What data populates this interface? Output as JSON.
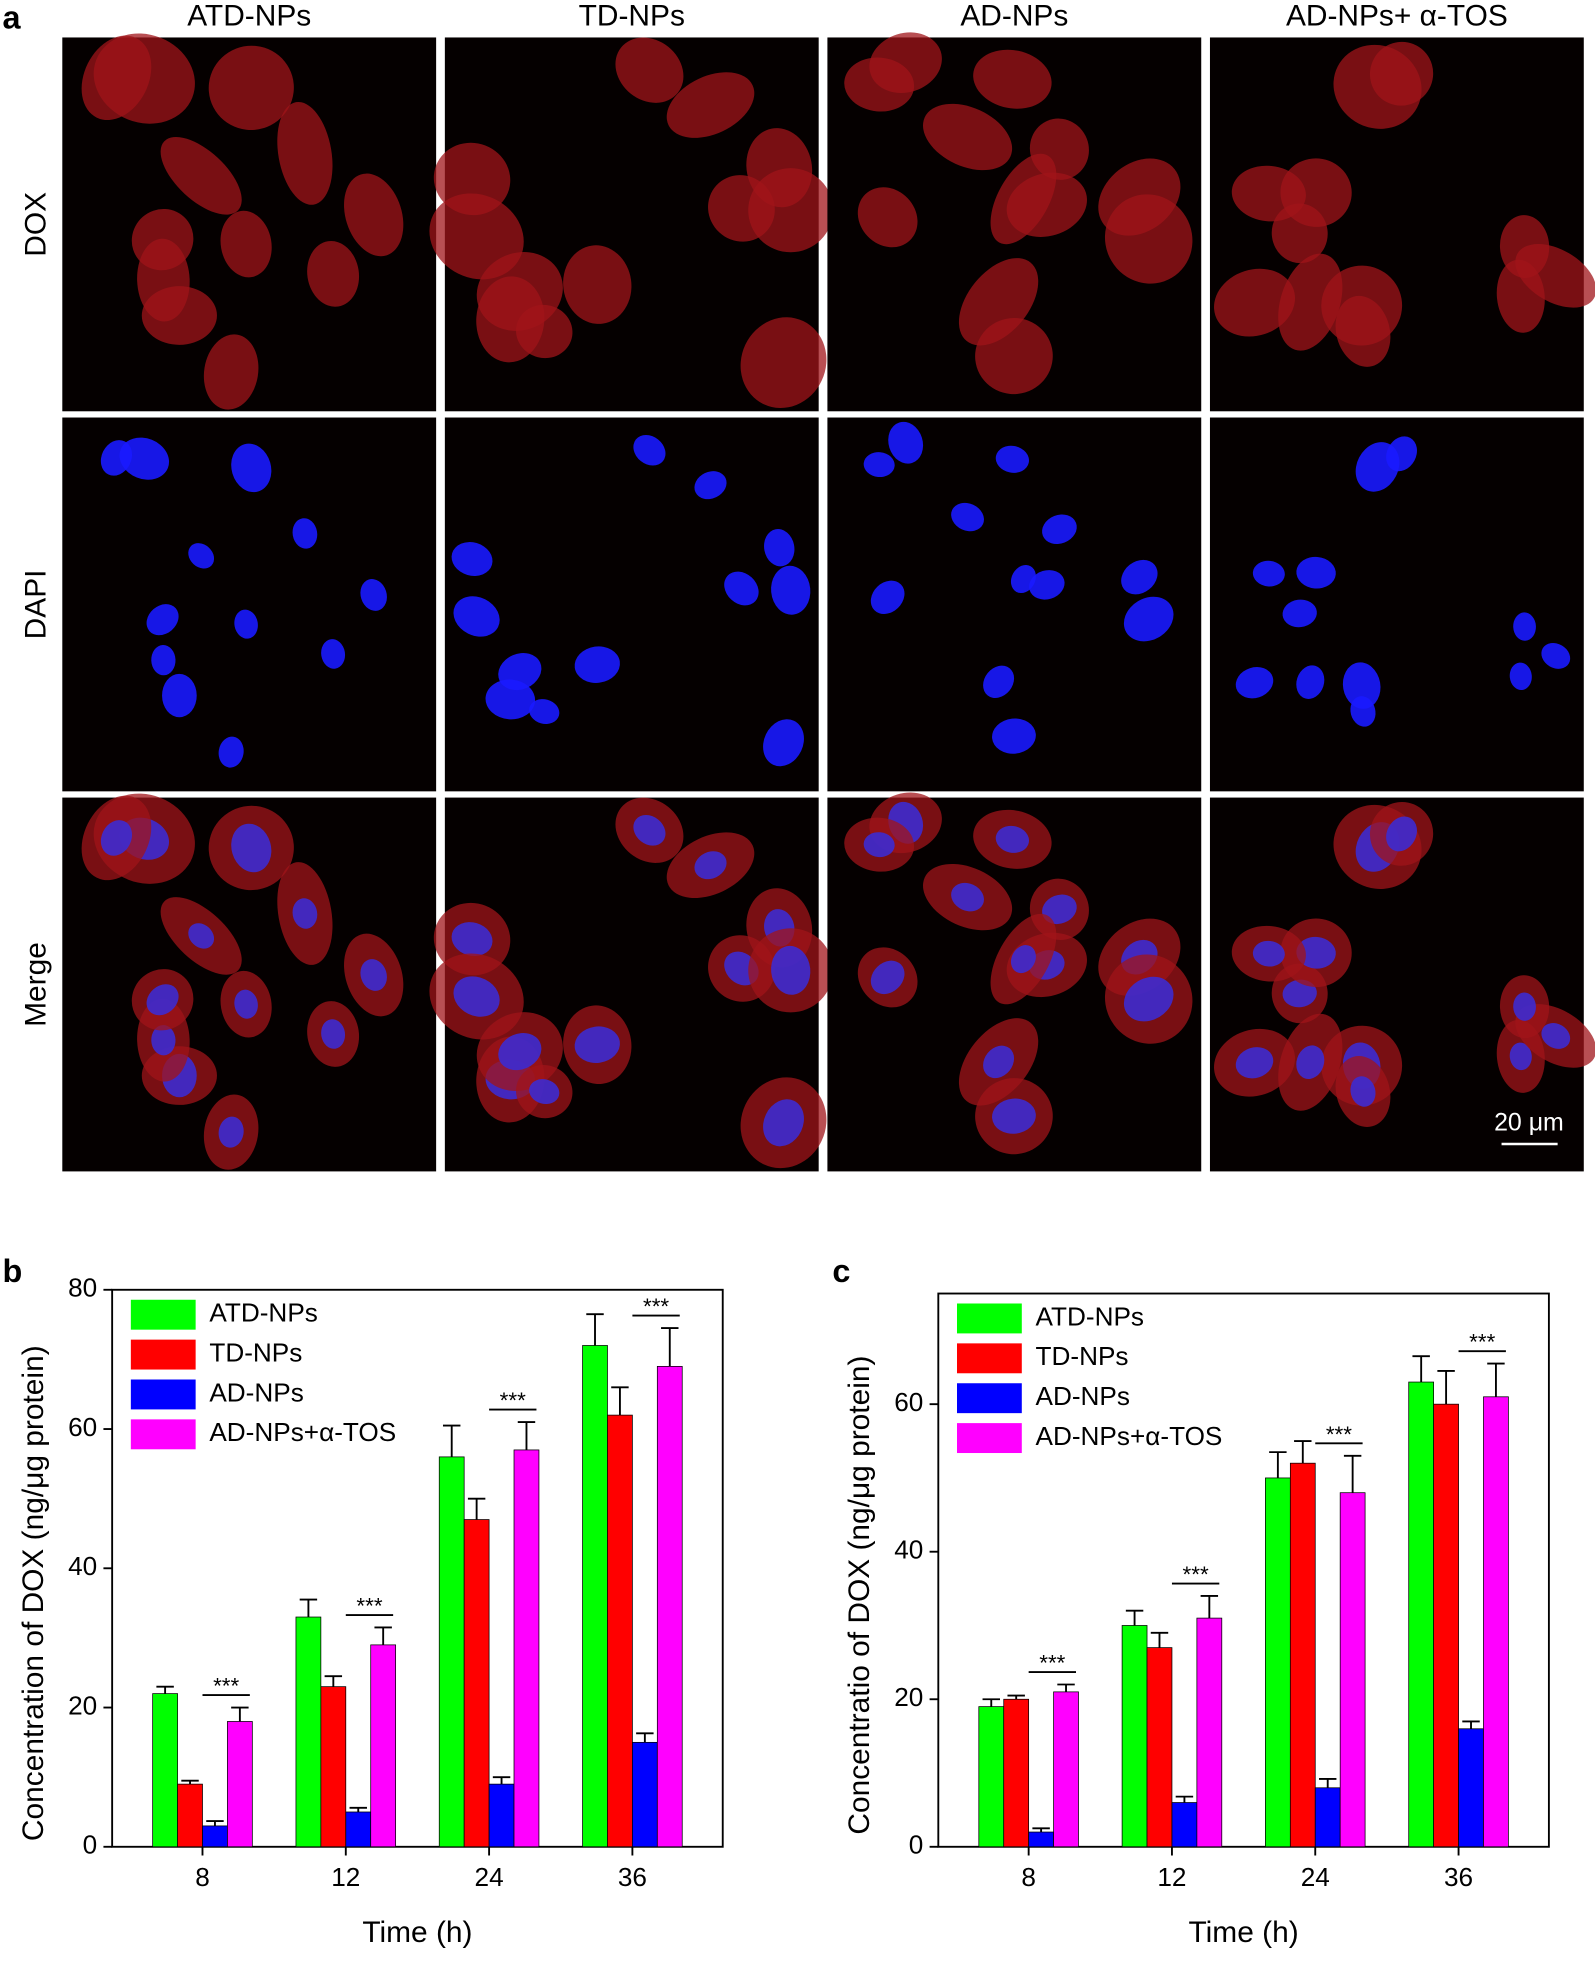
{
  "figure_a": {
    "panel_label": "a",
    "columns": [
      "ATD-NPs",
      "TD-NPs",
      "AD-NPs",
      "AD-NPs+ α-TOS"
    ],
    "rows": [
      "DOX",
      "DAPI",
      "Merge"
    ],
    "scale_bar": "20 μm"
  },
  "chart_data": [
    {
      "type": "bar",
      "panel_label": "b",
      "y_label": "Concentration of DOX (ng/μg protein)",
      "x_label": "Time (h)",
      "categories": [
        "8",
        "12",
        "24",
        "36"
      ],
      "ylim": [
        0,
        80
      ],
      "yticks": [
        0,
        20,
        40,
        60,
        80
      ],
      "legend": "top-left",
      "series": [
        {
          "name": "ATD-NPs",
          "color": "#00ff00",
          "values": [
            22,
            33,
            56,
            72
          ],
          "errors": [
            1,
            2.5,
            4.5,
            4.5
          ]
        },
        {
          "name": "TD-NPs",
          "color": "#ff0000",
          "values": [
            9,
            23,
            47,
            62
          ],
          "errors": [
            0.5,
            1.5,
            3,
            4
          ]
        },
        {
          "name": "AD-NPs",
          "color": "#0000ff",
          "values": [
            3,
            5,
            9,
            15
          ],
          "errors": [
            0.7,
            0.6,
            1,
            1.3
          ]
        },
        {
          "name": "AD-NPs+α-TOS",
          "color": "#ff00ff",
          "values": [
            18,
            29,
            57,
            69
          ],
          "errors": [
            2,
            2.5,
            4,
            5.5
          ]
        }
      ],
      "annotations": [
        "***",
        "***",
        "***",
        "***"
      ]
    },
    {
      "type": "bar",
      "panel_label": "c",
      "y_label": "Concentratio of DOX (ng/μg protein)",
      "x_label": "Time (h)",
      "categories": [
        "8",
        "12",
        "24",
        "36"
      ],
      "ylim": [
        0,
        75
      ],
      "yticks": [
        0,
        20,
        40,
        60
      ],
      "legend": "top-left",
      "series": [
        {
          "name": "ATD-NPs",
          "color": "#00ff00",
          "values": [
            19,
            30,
            50,
            63
          ],
          "errors": [
            1,
            2,
            3.5,
            3.5
          ]
        },
        {
          "name": "TD-NPs",
          "color": "#ff0000",
          "values": [
            20,
            27,
            52,
            60
          ],
          "errors": [
            0.5,
            2,
            3,
            4.5
          ]
        },
        {
          "name": "AD-NPs",
          "color": "#0000ff",
          "values": [
            2,
            6,
            8,
            16
          ],
          "errors": [
            0.5,
            0.8,
            1.2,
            1
          ]
        },
        {
          "name": "AD-NPs+α-TOS",
          "color": "#ff00ff",
          "values": [
            21,
            31,
            48,
            61
          ],
          "errors": [
            1,
            3,
            5,
            4.5
          ]
        }
      ],
      "annotations": [
        "***",
        "***",
        "***",
        "***"
      ]
    }
  ]
}
